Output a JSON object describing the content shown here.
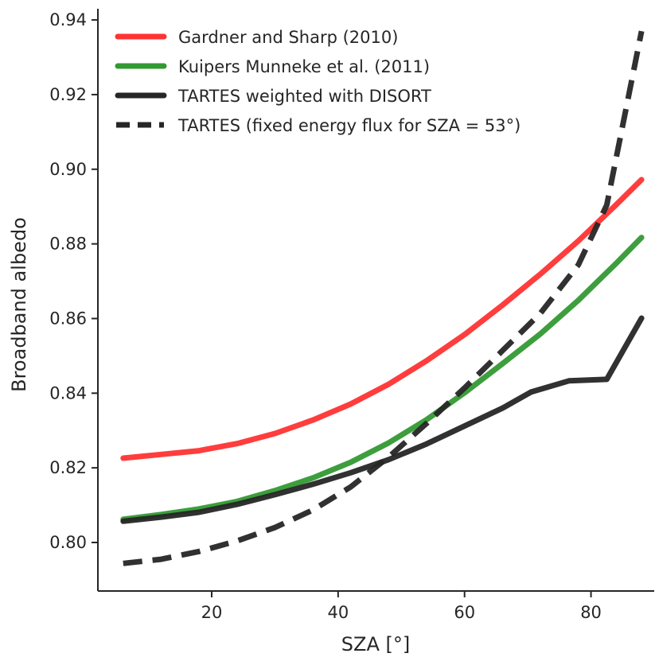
{
  "chart_data": {
    "type": "line",
    "title": "",
    "xlabel": "SZA [°]",
    "ylabel": "Broadband albedo",
    "xlim": [
      2,
      90
    ],
    "ylim": [
      0.787,
      0.943
    ],
    "xticks": [
      20,
      40,
      60,
      80
    ],
    "yticks": [
      0.8,
      0.82,
      0.84,
      0.86,
      0.88,
      0.9,
      0.92,
      0.94
    ],
    "xtick_labels": [
      "20",
      "40",
      "60",
      "80"
    ],
    "ytick_labels": [
      "0.80",
      "0.82",
      "0.84",
      "0.86",
      "0.88",
      "0.90",
      "0.92",
      "0.94"
    ],
    "grid": false,
    "legend_position": "top-left",
    "series": [
      {
        "name": "Gardner and Sharp (2010)",
        "color": "#ff3333",
        "dash": "solid",
        "x": [
          6,
          12,
          18,
          24,
          30,
          36,
          42,
          48,
          54,
          60,
          66,
          72,
          78,
          84,
          88
        ],
        "y": [
          0.8226,
          0.8236,
          0.8246,
          0.8265,
          0.8292,
          0.8328,
          0.8371,
          0.8424,
          0.8487,
          0.8557,
          0.8636,
          0.8719,
          0.8808,
          0.8905,
          0.8972
        ]
      },
      {
        "name": "Kuipers Munneke et al. (2011)",
        "color": "#339933",
        "dash": "solid",
        "x": [
          6,
          12,
          18,
          24,
          30,
          36,
          42,
          48,
          54,
          60,
          66,
          72,
          78,
          84,
          88
        ],
        "y": [
          0.8062,
          0.8075,
          0.809,
          0.811,
          0.8139,
          0.8173,
          0.8215,
          0.8267,
          0.8329,
          0.8401,
          0.8479,
          0.8559,
          0.8649,
          0.8748,
          0.8817
        ]
      },
      {
        "name": "TARTES weighted with DISORT",
        "color": "#262626",
        "dash": "solid",
        "x": [
          6,
          12,
          18,
          24,
          30,
          36,
          42,
          48,
          54,
          60,
          66,
          70.5,
          76.5,
          82.5,
          88
        ],
        "y": [
          0.8057,
          0.8068,
          0.8081,
          0.8102,
          0.8128,
          0.8156,
          0.8187,
          0.8222,
          0.8264,
          0.8312,
          0.836,
          0.8403,
          0.8433,
          0.8437,
          0.8601
        ]
      },
      {
        "name": "TARTES (fixed energy flux for SZA = 53°)",
        "color": "#262626",
        "dash": "dashed",
        "x": [
          6,
          12,
          18,
          24,
          30,
          36,
          42,
          48,
          54,
          60,
          66,
          72,
          78,
          82.5,
          88
        ],
        "y": [
          0.7944,
          0.7955,
          0.7976,
          0.8004,
          0.804,
          0.8087,
          0.8149,
          0.8229,
          0.8319,
          0.8414,
          0.8514,
          0.8614,
          0.8744,
          0.8904,
          0.937
        ]
      }
    ]
  }
}
